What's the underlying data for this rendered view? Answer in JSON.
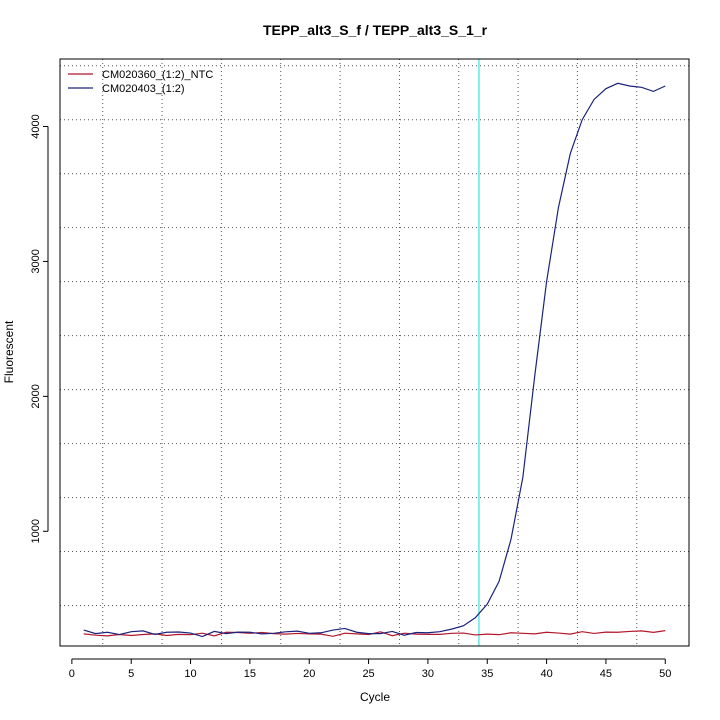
{
  "chart_data": {
    "type": "line",
    "title": "TEPP_alt3_S_f / TEPP_alt3_S_1_r",
    "xlabel": "Cycle",
    "ylabel": "Fluorescent",
    "xlim": [
      -1,
      52
    ],
    "ylim": [
      150,
      4500
    ],
    "x_ticks": [
      0,
      5,
      10,
      15,
      20,
      25,
      30,
      35,
      40,
      45,
      50
    ],
    "y_ticks": [
      1000,
      2000,
      3000,
      4000
    ],
    "grid": true,
    "grid_style": "dotted",
    "x_grid": [
      2.6,
      7.6,
      12.6,
      17.6,
      22.6,
      27.6,
      32.6,
      37.6,
      42.6,
      47.6
    ],
    "y_grid": [
      450,
      850,
      1250,
      1650,
      2050,
      2450,
      2850,
      3250,
      3650,
      4050,
      4450
    ],
    "legend_position": "top-left",
    "threshold": {
      "x": 34.3,
      "color": "#40e0e0"
    },
    "x": [
      1,
      2,
      3,
      4,
      5,
      6,
      7,
      8,
      9,
      10,
      11,
      12,
      13,
      14,
      15,
      16,
      17,
      18,
      19,
      20,
      21,
      22,
      23,
      24,
      25,
      26,
      27,
      28,
      29,
      30,
      31,
      32,
      33,
      34,
      35,
      36,
      37,
      38,
      39,
      40,
      41,
      42,
      43,
      44,
      45,
      46,
      47,
      48,
      49,
      50
    ],
    "series": [
      {
        "name": "CM020360_(1:2)_NTC",
        "color": "#b2182b",
        "values": [
          240,
          230,
          225,
          235,
          228,
          235,
          240,
          228,
          236,
          234,
          245,
          225,
          252,
          250,
          244,
          250,
          242,
          238,
          243,
          240,
          238,
          222,
          245,
          240,
          235,
          255,
          226,
          245,
          238,
          236,
          236,
          244,
          246,
          232,
          238,
          234,
          248,
          244,
          240,
          252,
          246,
          238,
          256,
          243,
          253,
          252,
          258,
          262,
          251,
          264
        ]
      },
      {
        "name": "CM020403_(1:2)",
        "color": "#1a237e",
        "values": [
          268,
          242,
          252,
          235,
          256,
          262,
          236,
          252,
          254,
          246,
          220,
          258,
          242,
          253,
          252,
          240,
          244,
          255,
          260,
          244,
          248,
          268,
          280,
          252,
          242,
          242,
          258,
          230,
          250,
          248,
          256,
          275,
          300,
          360,
          460,
          630,
          940,
          1400,
          2150,
          2850,
          3400,
          3800,
          4050,
          4200,
          4280,
          4320,
          4300,
          4290,
          4260,
          4300
        ]
      }
    ]
  }
}
